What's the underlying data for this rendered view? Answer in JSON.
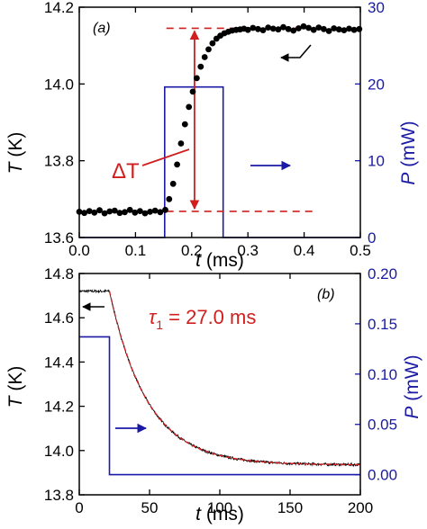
{
  "colors": {
    "temperature": "#000000",
    "temperature_fit": "#d11f1f",
    "power": "#1a1aa6",
    "annotation": "#d11f1f",
    "frame": "#000000"
  },
  "chart_data": [
    {
      "type": "scatter",
      "panel_label": "(a)",
      "xlabel": "t (ms)",
      "xlabel_var": "t",
      "xlabel_unit": "(ms)",
      "ylabel": "T (K)",
      "ylabel_var": "T",
      "ylabel_unit": "(K)",
      "y2label": "P (mW)",
      "y2label_var": "P",
      "y2label_unit": "(mW)",
      "xlim": [
        0.0,
        0.5
      ],
      "ylim": [
        13.6,
        14.2
      ],
      "y2lim": [
        0,
        30
      ],
      "xticks": [
        0.0,
        0.1,
        0.2,
        0.3,
        0.4,
        0.5
      ],
      "xticklabels": [
        "0.0",
        "0.1",
        "0.2",
        "0.3",
        "0.4",
        "0.5"
      ],
      "yticks": [
        13.6,
        13.8,
        14.0,
        14.2
      ],
      "yticklabels": [
        "13.6",
        "13.8",
        "14.0",
        "14.2"
      ],
      "y2ticks": [
        0,
        10,
        20,
        30
      ],
      "y2ticklabels": [
        "0",
        "10",
        "20",
        "30"
      ],
      "series": [
        {
          "axis": "left",
          "style": "markers",
          "x": [
            0.0,
            0.009,
            0.018,
            0.027,
            0.036,
            0.045,
            0.054,
            0.063,
            0.072,
            0.081,
            0.09,
            0.099,
            0.108,
            0.117,
            0.126,
            0.135,
            0.144,
            0.153,
            0.16,
            0.167,
            0.174,
            0.181,
            0.188,
            0.195,
            0.202,
            0.209,
            0.216,
            0.223,
            0.23,
            0.237,
            0.244,
            0.251,
            0.258,
            0.265,
            0.272,
            0.279,
            0.286,
            0.293,
            0.3,
            0.309,
            0.318,
            0.327,
            0.336,
            0.345,
            0.354,
            0.363,
            0.372,
            0.381,
            0.39,
            0.399,
            0.408,
            0.417,
            0.426,
            0.435,
            0.444,
            0.453,
            0.462,
            0.471,
            0.48,
            0.489,
            0.498
          ],
          "y": [
            13.667,
            13.664,
            13.669,
            13.665,
            13.671,
            13.663,
            13.668,
            13.67,
            13.664,
            13.666,
            13.672,
            13.665,
            13.669,
            13.663,
            13.667,
            13.67,
            13.666,
            13.672,
            13.7,
            13.74,
            13.79,
            13.845,
            13.895,
            13.94,
            13.98,
            14.015,
            14.045,
            14.07,
            14.09,
            14.106,
            14.118,
            14.126,
            14.132,
            14.136,
            14.139,
            14.141,
            14.142,
            14.144,
            14.141,
            14.146,
            14.143,
            14.14,
            14.147,
            14.144,
            14.142,
            14.148,
            14.143,
            14.139,
            14.145,
            14.15,
            14.146,
            14.141,
            14.147,
            14.143,
            14.138,
            14.145,
            14.142,
            14.14,
            14.144,
            14.141,
            14.143
          ]
        },
        {
          "axis": "right",
          "style": "line",
          "x": [
            0.0,
            0.152,
            0.152,
            0.256,
            0.256,
            0.5
          ],
          "y": [
            0,
            0,
            19.6,
            19.6,
            0,
            0
          ]
        }
      ],
      "reference_lines": {
        "low_T": 13.668,
        "high_T": 14.145,
        "x_start_low": 0.155,
        "x_start_high": 0.155,
        "x_end": 0.42
      },
      "annotations": {
        "delta_label": "ΔT",
        "arrow_x": 0.205
      }
    },
    {
      "type": "line",
      "panel_label": "(b)",
      "xlabel": "t (ms)",
      "xlabel_var": "t",
      "xlabel_unit": "(ms)",
      "ylabel": "T (K)",
      "ylabel_var": "T",
      "ylabel_unit": "(K)",
      "y2label": "P (mW)",
      "y2label_var": "P",
      "y2label_unit": "(mW)",
      "xlim": [
        0,
        200
      ],
      "ylim": [
        13.8,
        14.8
      ],
      "y2lim": [
        -0.02,
        0.2
      ],
      "xticks": [
        0,
        50,
        100,
        150,
        200
      ],
      "xticklabels": [
        "0",
        "50",
        "100",
        "150",
        "200"
      ],
      "yticks": [
        13.8,
        14.0,
        14.2,
        14.4,
        14.6,
        14.8
      ],
      "yticklabels": [
        "13.8",
        "14.0",
        "14.2",
        "14.4",
        "14.6",
        "14.8"
      ],
      "y2ticks": [
        0.0,
        0.05,
        0.1,
        0.15,
        0.2
      ],
      "y2ticklabels": [
        "0.00",
        "0.05",
        "0.10",
        "0.15",
        "0.20"
      ],
      "series": [
        {
          "axis": "left",
          "style": "noisy-line",
          "x_hold_end": 21.5,
          "T_initial": 14.72,
          "T_final": 13.935,
          "tau_ms": 27.0
        },
        {
          "axis": "right",
          "style": "line",
          "x": [
            0,
            21.5,
            21.5,
            200
          ],
          "y": [
            0.137,
            0.137,
            0.0,
            0.0
          ]
        }
      ],
      "annotations": {
        "tau_symbol": "τ",
        "tau_sub": "1",
        "tau_value": " = 27.0 ms"
      }
    }
  ]
}
